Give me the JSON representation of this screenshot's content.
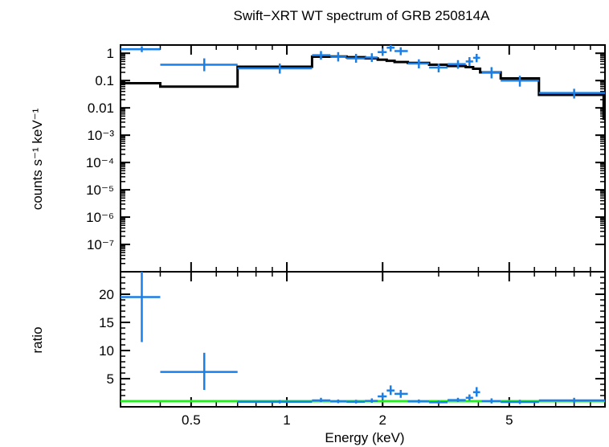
{
  "chart_data": {
    "type": "scatter",
    "title": "Swift−XRT WT spectrum of GRB 250814A",
    "xlabel": "Energy (keV)",
    "x_scale": "log",
    "xlim": [
      0.3,
      10
    ],
    "x_ticks": [
      {
        "value": 0.5,
        "label": "0.5"
      },
      {
        "value": 1,
        "label": "1"
      },
      {
        "value": 2,
        "label": "2"
      },
      {
        "value": 5,
        "label": "5"
      }
    ],
    "colors": {
      "data": "#1a7fe6",
      "model": "#000000",
      "unity": "#22ee22"
    },
    "top_panel": {
      "ylabel": "counts s⁻¹ keV⁻¹",
      "y_scale": "log",
      "ylim": [
        1e-08,
        2
      ],
      "y_ticks": [
        {
          "value": 1,
          "label": "1"
        },
        {
          "value": 0.1,
          "label": "0.1"
        },
        {
          "value": 0.01,
          "label": "0.01"
        },
        {
          "value": 0.001,
          "label": "10⁻³"
        },
        {
          "value": 0.0001,
          "label": "10⁻⁴"
        },
        {
          "value": 1e-05,
          "label": "10⁻⁵"
        },
        {
          "value": 1e-06,
          "label": "10⁻⁶"
        },
        {
          "value": 1e-07,
          "label": "10⁻⁷"
        }
      ],
      "data": [
        {
          "x": 0.35,
          "xlo": 0.3,
          "xhi": 0.4,
          "y": 1.4,
          "ylo": 1.1,
          "yhi": 1.8
        },
        {
          "x": 0.55,
          "xlo": 0.4,
          "xhi": 0.7,
          "y": 0.38,
          "ylo": 0.22,
          "yhi": 0.65
        },
        {
          "x": 0.95,
          "xlo": 0.7,
          "xhi": 1.2,
          "y": 0.28,
          "ylo": 0.18,
          "yhi": 0.42
        },
        {
          "x": 1.28,
          "xlo": 1.2,
          "xhi": 1.37,
          "y": 0.85,
          "ylo": 0.58,
          "yhi": 1.2
        },
        {
          "x": 1.45,
          "xlo": 1.37,
          "xhi": 1.54,
          "y": 0.75,
          "ylo": 0.5,
          "yhi": 1.1
        },
        {
          "x": 1.65,
          "xlo": 1.54,
          "xhi": 1.76,
          "y": 0.65,
          "ylo": 0.45,
          "yhi": 0.95
        },
        {
          "x": 1.85,
          "xlo": 1.76,
          "xhi": 1.93,
          "y": 0.7,
          "ylo": 0.48,
          "yhi": 1.0
        },
        {
          "x": 2.0,
          "xlo": 1.93,
          "xhi": 2.06,
          "y": 1.1,
          "ylo": 0.8,
          "yhi": 1.5
        },
        {
          "x": 2.12,
          "xlo": 2.06,
          "xhi": 2.18,
          "y": 1.6,
          "ylo": 1.15,
          "yhi": 2.1
        },
        {
          "x": 2.28,
          "xlo": 2.18,
          "xhi": 2.4,
          "y": 1.2,
          "ylo": 0.85,
          "yhi": 1.65
        },
        {
          "x": 2.6,
          "xlo": 2.4,
          "xhi": 2.8,
          "y": 0.42,
          "ylo": 0.28,
          "yhi": 0.6
        },
        {
          "x": 3.0,
          "xlo": 2.8,
          "xhi": 3.2,
          "y": 0.3,
          "ylo": 0.2,
          "yhi": 0.42
        },
        {
          "x": 3.45,
          "xlo": 3.2,
          "xhi": 3.65,
          "y": 0.4,
          "ylo": 0.27,
          "yhi": 0.56
        },
        {
          "x": 3.75,
          "xlo": 3.65,
          "xhi": 3.85,
          "y": 0.5,
          "ylo": 0.34,
          "yhi": 0.72
        },
        {
          "x": 3.95,
          "xlo": 3.85,
          "xhi": 4.05,
          "y": 0.68,
          "ylo": 0.47,
          "yhi": 0.95
        },
        {
          "x": 4.4,
          "xlo": 4.1,
          "xhi": 4.7,
          "y": 0.2,
          "ylo": 0.12,
          "yhi": 0.31
        },
        {
          "x": 5.4,
          "xlo": 4.7,
          "xhi": 6.2,
          "y": 0.1,
          "ylo": 0.06,
          "yhi": 0.15
        },
        {
          "x": 8.0,
          "xlo": 6.2,
          "xhi": 10.0,
          "y": 0.035,
          "ylo": 0.022,
          "yhi": 0.05
        }
      ],
      "model_steps": [
        {
          "xlo": 0.3,
          "xhi": 0.4,
          "y": 0.08
        },
        {
          "xlo": 0.4,
          "xhi": 0.7,
          "y": 0.06
        },
        {
          "xlo": 0.7,
          "xhi": 1.2,
          "y": 0.32
        },
        {
          "xlo": 1.2,
          "xhi": 1.37,
          "y": 0.75
        },
        {
          "xlo": 1.37,
          "xhi": 1.54,
          "y": 0.76
        },
        {
          "xlo": 1.54,
          "xhi": 1.76,
          "y": 0.72
        },
        {
          "xlo": 1.76,
          "xhi": 1.93,
          "y": 0.65
        },
        {
          "xlo": 1.93,
          "xhi": 2.06,
          "y": 0.58
        },
        {
          "xlo": 2.06,
          "xhi": 2.18,
          "y": 0.53
        },
        {
          "xlo": 2.18,
          "xhi": 2.4,
          "y": 0.48
        },
        {
          "xlo": 2.4,
          "xhi": 2.8,
          "y": 0.44
        },
        {
          "xlo": 2.8,
          "xhi": 3.2,
          "y": 0.38
        },
        {
          "xlo": 3.2,
          "xhi": 3.65,
          "y": 0.34
        },
        {
          "xlo": 3.65,
          "xhi": 3.85,
          "y": 0.31
        },
        {
          "xlo": 3.85,
          "xhi": 4.05,
          "y": 0.27
        },
        {
          "xlo": 4.05,
          "xhi": 4.7,
          "y": 0.2
        },
        {
          "xlo": 4.7,
          "xhi": 6.2,
          "y": 0.12
        },
        {
          "xlo": 6.2,
          "xhi": 9.9,
          "y": 0.03
        },
        {
          "xlo": 9.9,
          "xhi": 10.0,
          "y": 0.004
        }
      ]
    },
    "bottom_panel": {
      "ylabel": "ratio",
      "y_scale": "linear",
      "ylim": [
        0,
        24
      ],
      "y_ticks": [
        {
          "value": 5,
          "label": "5"
        },
        {
          "value": 10,
          "label": "10"
        },
        {
          "value": 15,
          "label": "15"
        },
        {
          "value": 20,
          "label": "20"
        }
      ],
      "unity_line": 1,
      "data": [
        {
          "x": 0.35,
          "xlo": 0.3,
          "xhi": 0.4,
          "y": 19.5,
          "ylo": 11.5,
          "yhi": 28
        },
        {
          "x": 0.55,
          "xlo": 0.4,
          "xhi": 0.7,
          "y": 6.2,
          "ylo": 3.0,
          "yhi": 9.6
        },
        {
          "x": 0.95,
          "xlo": 0.7,
          "xhi": 1.2,
          "y": 0.9,
          "ylo": 0.6,
          "yhi": 1.2
        },
        {
          "x": 1.28,
          "xlo": 1.2,
          "xhi": 1.37,
          "y": 1.15,
          "ylo": 0.8,
          "yhi": 1.6
        },
        {
          "x": 1.45,
          "xlo": 1.37,
          "xhi": 1.54,
          "y": 0.95,
          "ylo": 0.65,
          "yhi": 1.3
        },
        {
          "x": 1.65,
          "xlo": 1.54,
          "xhi": 1.76,
          "y": 0.9,
          "ylo": 0.6,
          "yhi": 1.25
        },
        {
          "x": 1.85,
          "xlo": 1.76,
          "xhi": 1.93,
          "y": 1.05,
          "ylo": 0.7,
          "yhi": 1.5
        },
        {
          "x": 2.0,
          "xlo": 1.93,
          "xhi": 2.06,
          "y": 1.85,
          "ylo": 1.3,
          "yhi": 2.5
        },
        {
          "x": 2.12,
          "xlo": 2.06,
          "xhi": 2.18,
          "y": 2.9,
          "ylo": 2.1,
          "yhi": 3.8
        },
        {
          "x": 2.28,
          "xlo": 2.18,
          "xhi": 2.4,
          "y": 2.3,
          "ylo": 1.6,
          "yhi": 3.0
        },
        {
          "x": 2.6,
          "xlo": 2.4,
          "xhi": 2.8,
          "y": 0.95,
          "ylo": 0.65,
          "yhi": 1.3
        },
        {
          "x": 3.0,
          "xlo": 2.8,
          "xhi": 3.2,
          "y": 0.8,
          "ylo": 0.55,
          "yhi": 1.1
        },
        {
          "x": 3.45,
          "xlo": 3.2,
          "xhi": 3.65,
          "y": 1.2,
          "ylo": 0.85,
          "yhi": 1.6
        },
        {
          "x": 3.75,
          "xlo": 3.65,
          "xhi": 3.85,
          "y": 1.6,
          "ylo": 1.1,
          "yhi": 2.2
        },
        {
          "x": 3.95,
          "xlo": 3.85,
          "xhi": 4.05,
          "y": 2.6,
          "ylo": 1.8,
          "yhi": 3.5
        },
        {
          "x": 4.4,
          "xlo": 4.1,
          "xhi": 4.7,
          "y": 1.0,
          "ylo": 0.6,
          "yhi": 1.5
        },
        {
          "x": 5.4,
          "xlo": 4.7,
          "xhi": 6.2,
          "y": 0.85,
          "ylo": 0.5,
          "yhi": 1.25
        },
        {
          "x": 8.0,
          "xlo": 6.2,
          "xhi": 10.0,
          "y": 1.15,
          "ylo": 0.7,
          "yhi": 1.6
        }
      ]
    }
  }
}
